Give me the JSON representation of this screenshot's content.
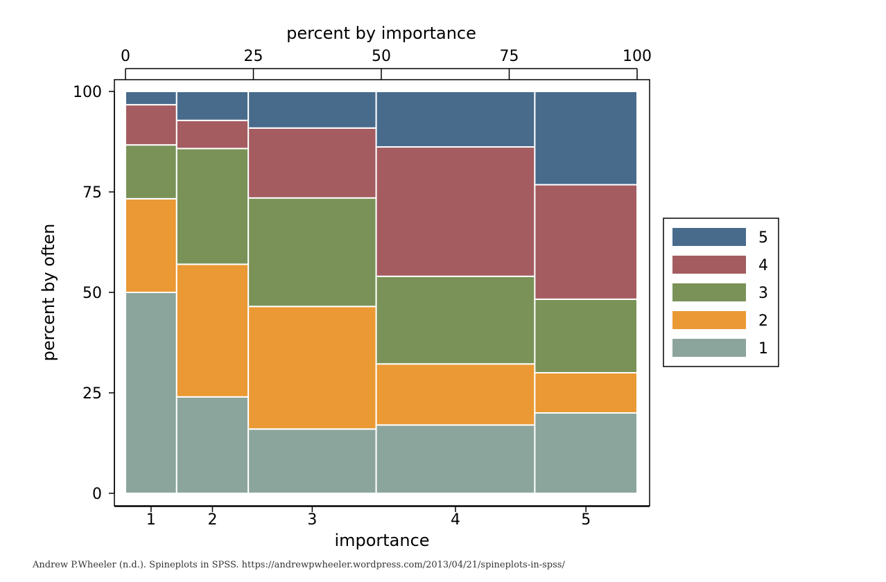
{
  "chart_data": {
    "type": "spineplot",
    "top_axis_label": "percent by importance",
    "top_ticks": [
      0,
      25,
      50,
      75,
      100
    ],
    "xlabel": "importance",
    "ylabel": "percent by often",
    "yticks": [
      0,
      25,
      50,
      75,
      100
    ],
    "ylim": [
      0,
      100
    ],
    "grid": false,
    "legend_position": "right",
    "categories": [
      {
        "label": "1",
        "start_pct": 0,
        "end_pct": 10
      },
      {
        "label": "2",
        "start_pct": 10,
        "end_pct": 24
      },
      {
        "label": "3",
        "start_pct": 24,
        "end_pct": 49
      },
      {
        "label": "4",
        "start_pct": 49,
        "end_pct": 80
      },
      {
        "label": "5",
        "start_pct": 80,
        "end_pct": 100
      }
    ],
    "series": [
      {
        "name": "1",
        "color": "#8ca59c",
        "values": [
          50,
          24,
          16,
          17,
          20
        ]
      },
      {
        "name": "2",
        "color": "#ea9934",
        "values": [
          23.3,
          33,
          30.5,
          15.2,
          10
        ]
      },
      {
        "name": "3",
        "color": "#7a9257",
        "values": [
          13.4,
          28.8,
          27,
          21.8,
          18.3
        ]
      },
      {
        "name": "4",
        "color": "#a45c60",
        "values": [
          10,
          7,
          17.4,
          32.2,
          28.5
        ]
      },
      {
        "name": "5",
        "color": "#486b8c",
        "values": [
          3.3,
          7.2,
          9.1,
          13.8,
          23.2
        ]
      }
    ]
  },
  "citation": "Andrew P.Wheeler (n.d.). Spineplots in SPSS. https://andrewpwheeler.wordpress.com/2013/04/21/spineplots-in-spss/"
}
